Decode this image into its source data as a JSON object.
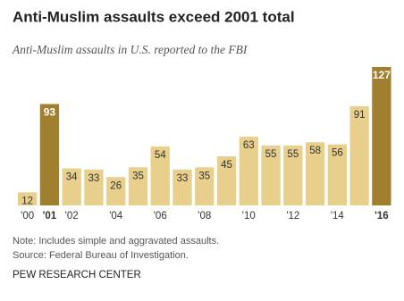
{
  "chart_data": {
    "type": "bar",
    "title": "Anti-Muslim assaults exceed 2001 total",
    "subtitle": "Anti-Muslim assaults in U.S. reported to the FBI",
    "categories": [
      "'00",
      "'01",
      "'02",
      null,
      "'04",
      null,
      "'06",
      null,
      "'08",
      null,
      "'10",
      null,
      "'12",
      null,
      "'14",
      null,
      "'16"
    ],
    "values": [
      12,
      93,
      34,
      33,
      26,
      35,
      54,
      33,
      35,
      45,
      63,
      55,
      55,
      58,
      56,
      91,
      127
    ],
    "colors": [
      "#e8cf8c",
      "#a07f2e",
      "#e8cf8c",
      "#e8cf8c",
      "#e8cf8c",
      "#e8cf8c",
      "#e8cf8c",
      "#e8cf8c",
      "#e8cf8c",
      "#e8cf8c",
      "#e8cf8c",
      "#e8cf8c",
      "#e8cf8c",
      "#e8cf8c",
      "#e8cf8c",
      "#e8cf8c",
      "#a07f2e"
    ],
    "label_colors": [
      "#333333",
      "#ffffff",
      "#333333",
      "#333333",
      "#333333",
      "#333333",
      "#333333",
      "#333333",
      "#333333",
      "#333333",
      "#333333",
      "#333333",
      "#333333",
      "#333333",
      "#333333",
      "#333333",
      "#ffffff"
    ],
    "notes": [
      "Note: Includes simple and aggravated assaults.",
      "Source: Federal Bureau of Investigation."
    ],
    "source": "PEW RESEARCH CENTER"
  }
}
